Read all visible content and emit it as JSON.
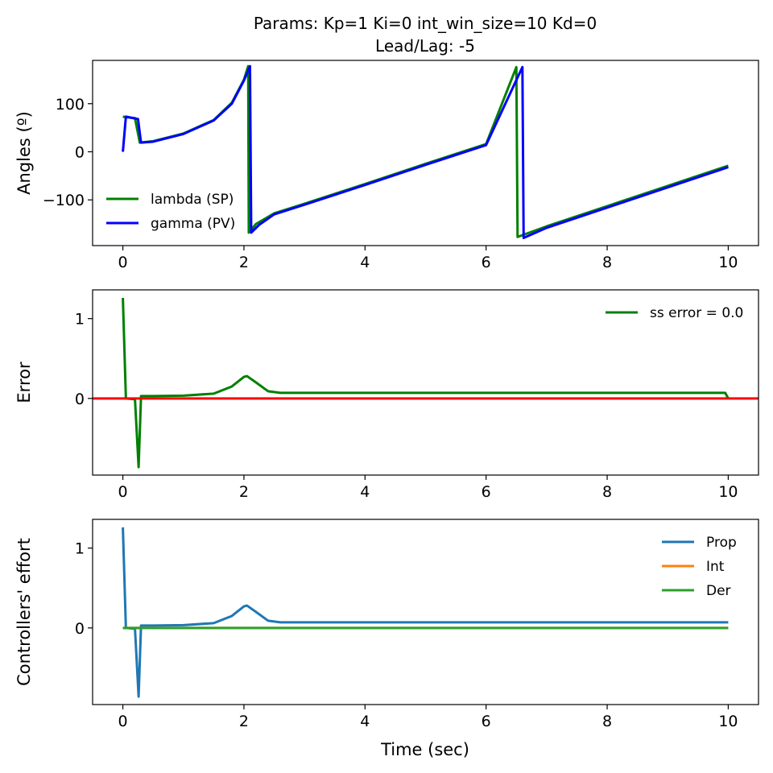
{
  "title_line1": "Params: Kp=1 Ki=0 int_win_size=10 Kd=0",
  "title_line2": "Lead/Lag: -5",
  "xlabel": "Time (sec)",
  "chart_data": [
    {
      "type": "line",
      "ylabel": "Angles (º)",
      "xlim": [
        -0.5,
        10.5
      ],
      "ylim": [
        -195,
        190
      ],
      "xticks": [
        0,
        2,
        4,
        6,
        8,
        10
      ],
      "yticks": [
        -100,
        0,
        100
      ],
      "ytick_labels": [
        "−100",
        "0",
        "100"
      ],
      "legend_position": "lower-left",
      "series": [
        {
          "name": "lambda (SP)",
          "color": "#008000",
          "points": [
            [
              0,
              73
            ],
            [
              0.05,
              72
            ],
            [
              0.2,
              70
            ],
            [
              0.28,
              19
            ],
            [
              0.5,
              22
            ],
            [
              1.0,
              38
            ],
            [
              1.5,
              66
            ],
            [
              1.8,
              102
            ],
            [
              2.0,
              150
            ],
            [
              2.07,
              178
            ],
            [
              2.08,
              -168
            ],
            [
              2.2,
              -150
            ],
            [
              2.5,
              -128
            ],
            [
              3.0,
              -108
            ],
            [
              4.0,
              -67
            ],
            [
              5.0,
              -25
            ],
            [
              6.0,
              16
            ],
            [
              6.5,
              176
            ],
            [
              6.52,
              -177
            ],
            [
              7.0,
              -155
            ],
            [
              8.0,
              -113
            ],
            [
              9.0,
              -71
            ],
            [
              10.0,
              -29
            ]
          ]
        },
        {
          "name": "gamma (PV)",
          "color": "#0000ff",
          "points": [
            [
              0,
              0
            ],
            [
              0.05,
              73
            ],
            [
              0.25,
              68
            ],
            [
              0.3,
              19
            ],
            [
              0.5,
              21
            ],
            [
              1.0,
              37
            ],
            [
              1.5,
              65
            ],
            [
              1.8,
              100
            ],
            [
              2.0,
              148
            ],
            [
              2.1,
              178
            ],
            [
              2.12,
              -168
            ],
            [
              2.25,
              -152
            ],
            [
              2.5,
              -130
            ],
            [
              3.0,
              -110
            ],
            [
              4.0,
              -69
            ],
            [
              5.0,
              -27
            ],
            [
              6.0,
              14
            ],
            [
              6.6,
              176
            ],
            [
              6.62,
              -179
            ],
            [
              7.0,
              -158
            ],
            [
              8.0,
              -116
            ],
            [
              9.0,
              -74
            ],
            [
              10.0,
              -32
            ]
          ]
        }
      ]
    },
    {
      "type": "line",
      "ylabel": "Error",
      "xlim": [
        -0.5,
        10.5
      ],
      "ylim": [
        -0.96,
        1.36
      ],
      "xticks": [
        0,
        2,
        4,
        6,
        8,
        10
      ],
      "yticks": [
        0,
        1
      ],
      "ytick_labels": [
        "0",
        "1"
      ],
      "legend_position": "upper-right",
      "hline": {
        "y": 0,
        "color": "#ff0000"
      },
      "series": [
        {
          "name": "ss error = 0.0",
          "color": "#008000",
          "points": [
            [
              0,
              1.26
            ],
            [
              0.05,
              0.0
            ],
            [
              0.2,
              -0.01
            ],
            [
              0.26,
              -0.86
            ],
            [
              0.3,
              0.03
            ],
            [
              0.5,
              0.03
            ],
            [
              1.0,
              0.035
            ],
            [
              1.5,
              0.06
            ],
            [
              1.8,
              0.15
            ],
            [
              2.0,
              0.27
            ],
            [
              2.05,
              0.28
            ],
            [
              2.2,
              0.2
            ],
            [
              2.4,
              0.09
            ],
            [
              2.6,
              0.07
            ],
            [
              4.0,
              0.07
            ],
            [
              6.0,
              0.07
            ],
            [
              8.0,
              0.07
            ],
            [
              9.95,
              0.07
            ],
            [
              10.0,
              0.0
            ]
          ]
        }
      ]
    },
    {
      "type": "line",
      "ylabel": "Controllers' effort",
      "xlim": [
        -0.5,
        10.5
      ],
      "ylim": [
        -0.96,
        1.36
      ],
      "xticks": [
        0,
        2,
        4,
        6,
        8,
        10
      ],
      "yticks": [
        0,
        1
      ],
      "ytick_labels": [
        "0",
        "1"
      ],
      "legend_position": "upper-right",
      "series": [
        {
          "name": "Prop",
          "color": "#1f77b4",
          "points": [
            [
              0,
              1.26
            ],
            [
              0.05,
              0.0
            ],
            [
              0.2,
              -0.01
            ],
            [
              0.26,
              -0.86
            ],
            [
              0.3,
              0.03
            ],
            [
              0.5,
              0.03
            ],
            [
              1.0,
              0.035
            ],
            [
              1.5,
              0.06
            ],
            [
              1.8,
              0.15
            ],
            [
              2.0,
              0.27
            ],
            [
              2.05,
              0.28
            ],
            [
              2.2,
              0.2
            ],
            [
              2.4,
              0.09
            ],
            [
              2.6,
              0.07
            ],
            [
              4.0,
              0.07
            ],
            [
              6.0,
              0.07
            ],
            [
              8.0,
              0.07
            ],
            [
              10.0,
              0.07
            ]
          ]
        },
        {
          "name": "Int",
          "color": "#ff7f0e",
          "points": [
            [
              0,
              0
            ],
            [
              10,
              0
            ]
          ]
        },
        {
          "name": "Der",
          "color": "#2ca02c",
          "points": [
            [
              0,
              0
            ],
            [
              10,
              0
            ]
          ]
        }
      ]
    }
  ]
}
